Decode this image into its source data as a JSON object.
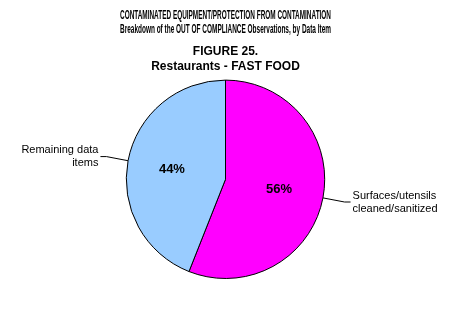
{
  "chart_data": {
    "type": "pie",
    "title": [
      "CONTAMINATED EQUIPMENT/PROTECTION FROM CONTAMINATION",
      "Breakdown of the OUT OF COMPLIANCE Observations, by Data Item"
    ],
    "subtitle": [
      "FIGURE 25.",
      "Restaurants - FAST FOOD"
    ],
    "categories": [
      "Surfaces/utensils cleaned/sanitized",
      "Remaining data items"
    ],
    "values": [
      56,
      44
    ],
    "value_labels": [
      "56%",
      "44%"
    ],
    "colors": [
      "#ff00ff",
      "#99ccff"
    ],
    "data_labels": true
  }
}
